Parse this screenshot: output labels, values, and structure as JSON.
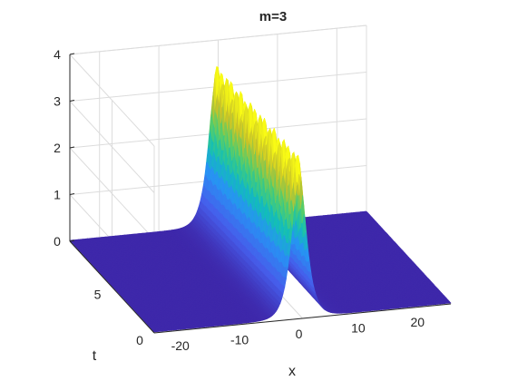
{
  "chart_data": {
    "type": "surface",
    "title": "m=3",
    "xlabel": "x",
    "ylabel": "t",
    "zlabel": "",
    "xlim": [
      -25,
      25
    ],
    "ylim": [
      0,
      10
    ],
    "zlim": [
      0,
      4
    ],
    "xticks": [
      "-20",
      "-10",
      "0",
      "10",
      "20"
    ],
    "xtick_values": [
      -20,
      -10,
      0,
      10,
      20
    ],
    "yticks": [
      "0",
      "5"
    ],
    "ytick_values": [
      0,
      5
    ],
    "zticks": [
      "0",
      "1",
      "2",
      "3",
      "4"
    ],
    "ztick_values": [
      0,
      1,
      2,
      3,
      4
    ],
    "grid": true,
    "colormap": "parula",
    "surface": {
      "description_of_shape": "single localized wave along x near 0 with amplitude about 3 and small oscillations, flat elsewhere",
      "peak_x": -0.5,
      "peak_amplitude": 3.1,
      "background_level": 0.02
    }
  }
}
